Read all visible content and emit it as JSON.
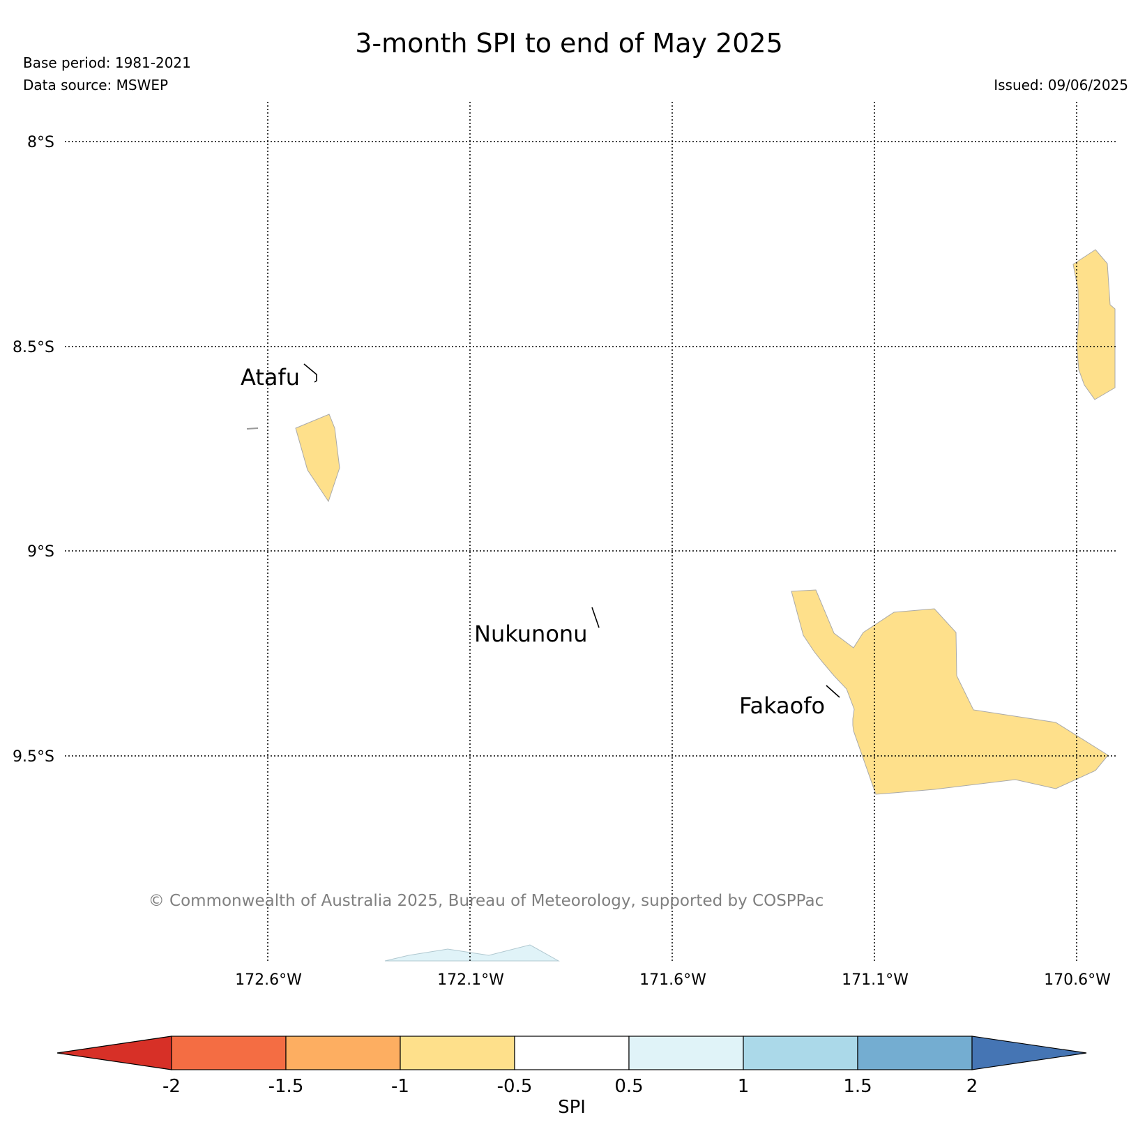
{
  "header": {
    "title": "3-month SPI to end of May 2025",
    "base_period": "Base period: 1981-2021",
    "data_source": "Data source: MSWEP",
    "issued": "Issued: 09/06/2025"
  },
  "map": {
    "lat_labels": [
      "8°S",
      "8.5°S",
      "9°S",
      "9.5°S"
    ],
    "lon_labels": [
      "172.6°W",
      "172.1°W",
      "171.6°W",
      "171.1°W",
      "170.6°W"
    ],
    "places": [
      {
        "name": "Atafu"
      },
      {
        "name": "Nukunonu"
      },
      {
        "name": "Fakaofo"
      }
    ],
    "copyright": "© Commonwealth of Australia 2025, Bureau of Meteorology, supported by COSPPac",
    "shading_colors": {
      "dry_moderate": "#fee08b",
      "wet_light": "#e0f3f8"
    }
  },
  "colorbar": {
    "label": "SPI",
    "ticks": [
      "-2",
      "-1.5",
      "-1",
      "-0.5",
      "0.5",
      "1",
      "1.5",
      "2"
    ],
    "colors": [
      "#d73027",
      "#f46d43",
      "#fdae61",
      "#fee08b",
      "#ffffff",
      "#e0f3f8",
      "#abd9e9",
      "#74add1",
      "#4575b4"
    ]
  }
}
